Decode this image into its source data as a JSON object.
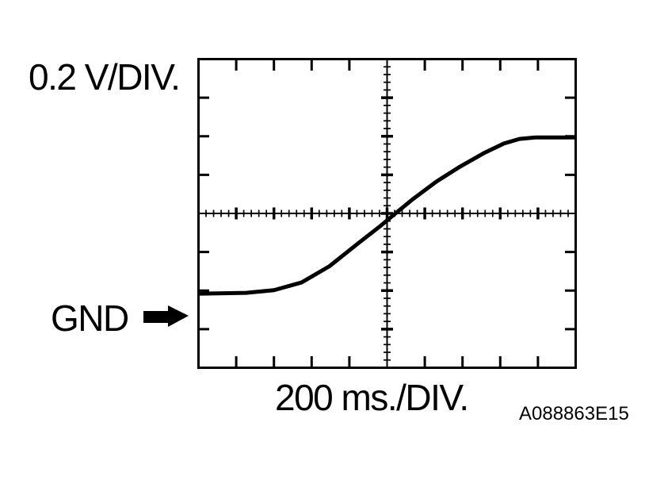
{
  "page": {
    "background": "#ffffff",
    "ink": "#000000"
  },
  "figure": {
    "y_scale_label": "0.2 V/DIV.",
    "x_scale_label": "200 ms./DIV.",
    "gnd_label": "GND",
    "figure_code": "A088863E15"
  },
  "chart_data": {
    "type": "line",
    "title": "",
    "description": "Oscilloscope trace: smooth S-shaped voltage sweep rising from a flat level of about 0.12 V above GND to a flat plateau of about 0.93 V above GND, crossing screen center near the middle of the sweep",
    "x_axis": {
      "scale_label": "200 ms./DIV.",
      "ms_per_div": 200,
      "divisions": 10,
      "minor_ticks_per_div": 5,
      "range_ms": [
        -1000,
        1000
      ]
    },
    "y_axis": {
      "scale_label": "0.2 V/DIV.",
      "v_per_div": 0.2,
      "divisions": 8,
      "minor_ticks_per_div": 5
    },
    "gnd_marker": {
      "label": "GND",
      "div_from_center": -2.66
    },
    "grid": "center crosshair graticule with minor ticks; major tick marks inside all four borders",
    "legend": "none",
    "curve_points_div": [
      [
        -5.0,
        -2.08
      ],
      [
        -3.74,
        -2.06
      ],
      [
        -3.0,
        -1.99
      ],
      [
        -2.27,
        -1.79
      ],
      [
        -1.53,
        -1.37
      ],
      [
        -0.8,
        -0.8
      ],
      [
        -0.17,
        -0.32
      ],
      [
        0.21,
        -0.01
      ],
      [
        0.67,
        0.36
      ],
      [
        1.3,
        0.82
      ],
      [
        1.93,
        1.21
      ],
      [
        2.56,
        1.56
      ],
      [
        3.09,
        1.81
      ],
      [
        3.51,
        1.93
      ],
      [
        3.93,
        1.97
      ],
      [
        5.02,
        1.97
      ]
    ],
    "curve_points_physical": [
      {
        "t_ms": -1000,
        "v_above_gnd": 0.12
      },
      {
        "t_ms": -748,
        "v_above_gnd": 0.12
      },
      {
        "t_ms": -600,
        "v_above_gnd": 0.13
      },
      {
        "t_ms": -454,
        "v_above_gnd": 0.17
      },
      {
        "t_ms": -306,
        "v_above_gnd": 0.26
      },
      {
        "t_ms": -160,
        "v_above_gnd": 0.37
      },
      {
        "t_ms": -34,
        "v_above_gnd": 0.47
      },
      {
        "t_ms": 42,
        "v_above_gnd": 0.53
      },
      {
        "t_ms": 134,
        "v_above_gnd": 0.6
      },
      {
        "t_ms": 260,
        "v_above_gnd": 0.7
      },
      {
        "t_ms": 386,
        "v_above_gnd": 0.77
      },
      {
        "t_ms": 512,
        "v_above_gnd": 0.84
      },
      {
        "t_ms": 618,
        "v_above_gnd": 0.89
      },
      {
        "t_ms": 702,
        "v_above_gnd": 0.92
      },
      {
        "t_ms": 786,
        "v_above_gnd": 0.93
      },
      {
        "t_ms": 1004,
        "v_above_gnd": 0.93
      }
    ]
  }
}
